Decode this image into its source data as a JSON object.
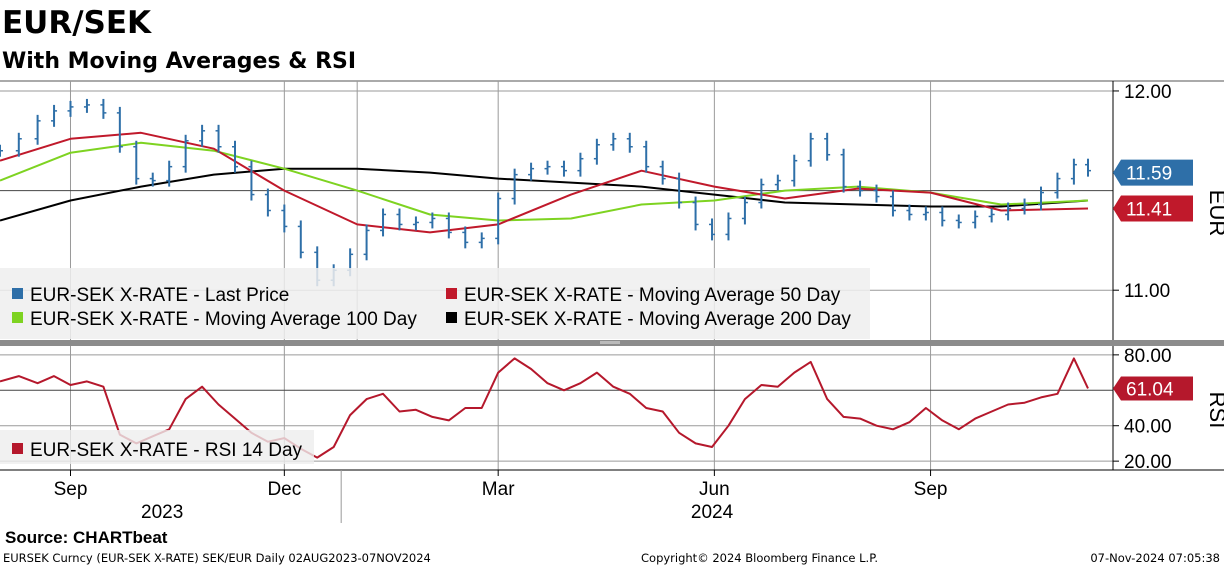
{
  "header": {
    "title": "EUR/SEK",
    "subtitle": "With Moving Averages & RSI"
  },
  "footer": {
    "source": "Source:  CHARTbeat",
    "ticker_info": "EURSEK Curncy (EUR-SEK X-RATE) SEK/EUR  Daily 02AUG2023-07NOV2024",
    "copyright": "Copyright© 2024 Bloomberg Finance L.P.",
    "timestamp": "07-Nov-2024 07:05:38"
  },
  "colors": {
    "last_price": "#2e6fa8",
    "ma50": "#c0192b",
    "ma100": "#7ed321",
    "ma200": "#000000",
    "rsi": "#b5182c",
    "price_tag": "#2e6fa8",
    "ma_tag": "#c0192b"
  },
  "chart_data": [
    {
      "type": "line",
      "title": "EUR/SEK",
      "subtitle": "With Moving Averages & RSI",
      "ylabel": "EUR",
      "ylim": [
        10.75,
        12.05
      ],
      "y_ticks": [
        "12.00",
        "11.00"
      ],
      "y_tick_values": [
        12.0,
        11.0
      ],
      "legend_position": "bottom-left",
      "x_ticks": [
        "Sep",
        "Dec",
        "Mar",
        "Jun",
        "Sep"
      ],
      "x_tick_dates": [
        "2023-09-01",
        "2023-12-01",
        "2024-03-01",
        "2024-06-01",
        "2024-09-01"
      ],
      "year_labels": [
        "2023",
        "2024"
      ],
      "date_range": [
        "2023-08-02",
        "2024-11-07"
      ],
      "tags": [
        {
          "label": "11.59",
          "value": 11.59,
          "series": "EUR-SEK X-RATE - Last Price"
        },
        {
          "label": "11.41",
          "value": 11.41,
          "series": "EUR-SEK X-RATE - Moving Average 50 Day"
        }
      ],
      "series": [
        {
          "name": "EUR-SEK X-RATE - Last Price",
          "style": "ohlc-bars",
          "points": [
            [
              "2023-08-02",
              11.7
            ],
            [
              "2023-08-10",
              11.76
            ],
            [
              "2023-08-18",
              11.85
            ],
            [
              "2023-08-25",
              11.9
            ],
            [
              "2023-09-01",
              11.92
            ],
            [
              "2023-09-08",
              11.93
            ],
            [
              "2023-09-15",
              11.89
            ],
            [
              "2023-09-22",
              11.72
            ],
            [
              "2023-09-29",
              11.56
            ],
            [
              "2023-10-06",
              11.55
            ],
            [
              "2023-10-13",
              11.62
            ],
            [
              "2023-10-20",
              11.75
            ],
            [
              "2023-10-27",
              11.8
            ],
            [
              "2023-11-03",
              11.72
            ],
            [
              "2023-11-10",
              11.62
            ],
            [
              "2023-11-17",
              11.48
            ],
            [
              "2023-11-24",
              11.4
            ],
            [
              "2023-12-01",
              11.32
            ],
            [
              "2023-12-08",
              11.19
            ],
            [
              "2023-12-15",
              11.05
            ],
            [
              "2023-12-22",
              11.1
            ],
            [
              "2023-12-29",
              11.18
            ],
            [
              "2024-01-05",
              11.3
            ],
            [
              "2024-01-12",
              11.38
            ],
            [
              "2024-01-19",
              11.33
            ],
            [
              "2024-01-26",
              11.34
            ],
            [
              "2024-02-02",
              11.36
            ],
            [
              "2024-02-09",
              11.29
            ],
            [
              "2024-02-16",
              11.24
            ],
            [
              "2024-02-23",
              11.26
            ],
            [
              "2024-03-01",
              11.46
            ],
            [
              "2024-03-08",
              11.58
            ],
            [
              "2024-03-15",
              11.61
            ],
            [
              "2024-03-22",
              11.62
            ],
            [
              "2024-03-29",
              11.6
            ],
            [
              "2024-04-05",
              11.66
            ],
            [
              "2024-04-12",
              11.73
            ],
            [
              "2024-04-19",
              11.76
            ],
            [
              "2024-04-26",
              11.72
            ],
            [
              "2024-05-03",
              11.62
            ],
            [
              "2024-05-10",
              11.56
            ],
            [
              "2024-05-17",
              11.44
            ],
            [
              "2024-05-24",
              11.33
            ],
            [
              "2024-05-31",
              11.28
            ],
            [
              "2024-06-07",
              11.36
            ],
            [
              "2024-06-14",
              11.44
            ],
            [
              "2024-06-21",
              11.53
            ],
            [
              "2024-06-28",
              11.55
            ],
            [
              "2024-07-05",
              11.65
            ],
            [
              "2024-07-12",
              11.76
            ],
            [
              "2024-07-19",
              11.68
            ],
            [
              "2024-07-26",
              11.52
            ],
            [
              "2024-08-02",
              11.5
            ],
            [
              "2024-08-09",
              11.47
            ],
            [
              "2024-08-16",
              11.4
            ],
            [
              "2024-08-23",
              11.38
            ],
            [
              "2024-08-30",
              11.39
            ],
            [
              "2024-09-06",
              11.35
            ],
            [
              "2024-09-13",
              11.34
            ],
            [
              "2024-09-20",
              11.37
            ],
            [
              "2024-09-27",
              11.38
            ],
            [
              "2024-10-04",
              11.41
            ],
            [
              "2024-10-11",
              11.43
            ],
            [
              "2024-10-18",
              11.49
            ],
            [
              "2024-10-25",
              11.56
            ],
            [
              "2024-11-01",
              11.63
            ],
            [
              "2024-11-07",
              11.6
            ]
          ]
        },
        {
          "name": "EUR-SEK X-RATE - Moving Average 50 Day",
          "style": "line",
          "points": [
            [
              "2023-08-02",
              11.65
            ],
            [
              "2023-09-01",
              11.76
            ],
            [
              "2023-10-01",
              11.79
            ],
            [
              "2023-11-01",
              11.71
            ],
            [
              "2023-12-01",
              11.5
            ],
            [
              "2024-01-01",
              11.33
            ],
            [
              "2024-02-01",
              11.29
            ],
            [
              "2024-03-01",
              11.33
            ],
            [
              "2024-04-01",
              11.48
            ],
            [
              "2024-05-01",
              11.6
            ],
            [
              "2024-06-01",
              11.52
            ],
            [
              "2024-07-01",
              11.46
            ],
            [
              "2024-08-01",
              11.51
            ],
            [
              "2024-09-01",
              11.49
            ],
            [
              "2024-10-01",
              11.4
            ],
            [
              "2024-11-07",
              11.41
            ]
          ]
        },
        {
          "name": "EUR-SEK X-RATE - Moving Average 100 Day",
          "style": "line",
          "points": [
            [
              "2023-08-02",
              11.55
            ],
            [
              "2023-09-01",
              11.69
            ],
            [
              "2023-10-01",
              11.74
            ],
            [
              "2023-11-01",
              11.7
            ],
            [
              "2023-12-01",
              11.61
            ],
            [
              "2024-01-01",
              11.5
            ],
            [
              "2024-02-01",
              11.38
            ],
            [
              "2024-03-01",
              11.35
            ],
            [
              "2024-04-01",
              11.36
            ],
            [
              "2024-05-01",
              11.43
            ],
            [
              "2024-06-01",
              11.45
            ],
            [
              "2024-07-01",
              11.5
            ],
            [
              "2024-08-01",
              11.52
            ],
            [
              "2024-09-01",
              11.49
            ],
            [
              "2024-10-01",
              11.43
            ],
            [
              "2024-11-07",
              11.45
            ]
          ]
        },
        {
          "name": "EUR-SEK X-RATE - Moving Average 200 Day",
          "style": "line",
          "points": [
            [
              "2023-08-02",
              11.35
            ],
            [
              "2023-09-01",
              11.45
            ],
            [
              "2023-10-01",
              11.52
            ],
            [
              "2023-11-01",
              11.58
            ],
            [
              "2023-12-01",
              11.61
            ],
            [
              "2024-01-01",
              11.61
            ],
            [
              "2024-02-01",
              11.59
            ],
            [
              "2024-03-01",
              11.56
            ],
            [
              "2024-04-01",
              11.54
            ],
            [
              "2024-05-01",
              11.52
            ],
            [
              "2024-06-01",
              11.48
            ],
            [
              "2024-07-01",
              11.44
            ],
            [
              "2024-08-01",
              11.43
            ],
            [
              "2024-09-01",
              11.42
            ],
            [
              "2024-10-01",
              11.42
            ],
            [
              "2024-11-07",
              11.45
            ]
          ]
        }
      ]
    },
    {
      "type": "line",
      "ylabel": "RSI",
      "ylim": [
        15,
        85
      ],
      "y_ticks": [
        "80.00",
        "40.00",
        "20.00"
      ],
      "y_tick_values": [
        80,
        40,
        20
      ],
      "legend_position": "bottom-left",
      "tags": [
        {
          "label": "61.04",
          "value": 61.04,
          "series": "EUR-SEK X-RATE - RSI 14 Day"
        }
      ],
      "series": [
        {
          "name": "EUR-SEK X-RATE - RSI 14 Day",
          "style": "line",
          "points": [
            [
              "2023-08-02",
              65
            ],
            [
              "2023-08-10",
              68
            ],
            [
              "2023-08-18",
              64
            ],
            [
              "2023-08-25",
              68
            ],
            [
              "2023-09-01",
              63
            ],
            [
              "2023-09-08",
              65
            ],
            [
              "2023-09-15",
              62
            ],
            [
              "2023-09-22",
              35
            ],
            [
              "2023-09-29",
              30
            ],
            [
              "2023-10-06",
              34
            ],
            [
              "2023-10-13",
              38
            ],
            [
              "2023-10-20",
              55
            ],
            [
              "2023-10-27",
              62
            ],
            [
              "2023-11-03",
              52
            ],
            [
              "2023-11-10",
              44
            ],
            [
              "2023-11-17",
              36
            ],
            [
              "2023-11-24",
              31
            ],
            [
              "2023-12-01",
              33
            ],
            [
              "2023-12-08",
              27
            ],
            [
              "2023-12-15",
              22
            ],
            [
              "2023-12-22",
              28
            ],
            [
              "2023-12-29",
              46
            ],
            [
              "2024-01-05",
              55
            ],
            [
              "2024-01-12",
              58
            ],
            [
              "2024-01-19",
              48
            ],
            [
              "2024-01-26",
              49
            ],
            [
              "2024-02-02",
              45
            ],
            [
              "2024-02-09",
              43
            ],
            [
              "2024-02-16",
              50
            ],
            [
              "2024-02-23",
              50
            ],
            [
              "2024-03-01",
              70
            ],
            [
              "2024-03-08",
              78
            ],
            [
              "2024-03-15",
              72
            ],
            [
              "2024-03-22",
              64
            ],
            [
              "2024-03-29",
              60
            ],
            [
              "2024-04-05",
              64
            ],
            [
              "2024-04-12",
              70
            ],
            [
              "2024-04-19",
              62
            ],
            [
              "2024-04-26",
              58
            ],
            [
              "2024-05-03",
              50
            ],
            [
              "2024-05-10",
              48
            ],
            [
              "2024-05-17",
              36
            ],
            [
              "2024-05-24",
              30
            ],
            [
              "2024-05-31",
              28
            ],
            [
              "2024-06-07",
              40
            ],
            [
              "2024-06-14",
              55
            ],
            [
              "2024-06-21",
              63
            ],
            [
              "2024-06-28",
              62
            ],
            [
              "2024-07-05",
              70
            ],
            [
              "2024-07-12",
              76
            ],
            [
              "2024-07-19",
              55
            ],
            [
              "2024-07-26",
              45
            ],
            [
              "2024-08-02",
              44
            ],
            [
              "2024-08-09",
              40
            ],
            [
              "2024-08-16",
              38
            ],
            [
              "2024-08-23",
              42
            ],
            [
              "2024-08-30",
              50
            ],
            [
              "2024-09-06",
              43
            ],
            [
              "2024-09-13",
              38
            ],
            [
              "2024-09-20",
              44
            ],
            [
              "2024-09-27",
              48
            ],
            [
              "2024-10-04",
              52
            ],
            [
              "2024-10-11",
              53
            ],
            [
              "2024-10-18",
              56
            ],
            [
              "2024-10-25",
              58
            ],
            [
              "2024-11-01",
              78
            ],
            [
              "2024-11-07",
              61.04
            ]
          ]
        }
      ]
    }
  ]
}
